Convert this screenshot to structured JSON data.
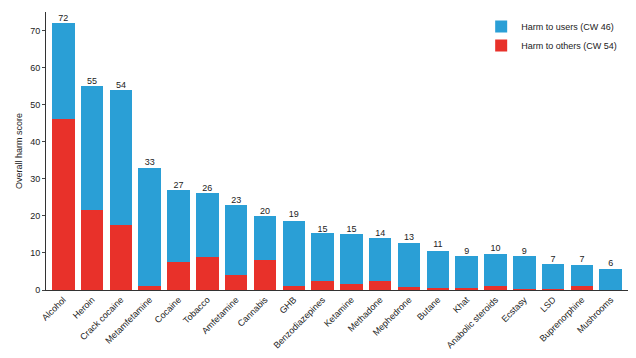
{
  "chart_data": {
    "type": "bar",
    "stacked": true,
    "y_label": "Overall harm score",
    "categories": [
      "Alcohol",
      "Heroin",
      "Crack cocaine",
      "Metamfetamine",
      "Cocaine",
      "Tobacco",
      "Amfetamine",
      "Cannabis",
      "GHB",
      "Benzodiazepines",
      "Ketamine",
      "Methadone",
      "Mephedrone",
      "Butane",
      "Khat",
      "Anabolic steroids",
      "Ecstasy",
      "LSD",
      "Buprenorphine",
      "Mushrooms"
    ],
    "series": [
      {
        "name": "Harm to others (CW 54)",
        "color": "#e8312a",
        "values": [
          46,
          21.5,
          17.5,
          1,
          7.5,
          9,
          4,
          8,
          1,
          2.5,
          1.7,
          2.4,
          0.7,
          0.6,
          0.6,
          1.2,
          0.3,
          0.2,
          1.2,
          0.1
        ]
      },
      {
        "name": "Harm to users (CW 46)",
        "color": "#2a9fd6",
        "values": [
          26,
          33.5,
          36.5,
          32,
          19.5,
          17.3,
          19,
          12,
          17.6,
          12.8,
          13.3,
          11.5,
          12,
          10,
          8.5,
          8.5,
          8.8,
          6.8,
          5.5,
          5.5
        ]
      }
    ],
    "totals": [
      72,
      55,
      54,
      33,
      27,
      26,
      23,
      20,
      19,
      15,
      15,
      14,
      13,
      11,
      9,
      10,
      9,
      7,
      7,
      6
    ],
    "ylim": [
      0,
      75
    ],
    "yticks": [
      0,
      10,
      20,
      30,
      40,
      50,
      60,
      70
    ],
    "grid": false,
    "legend": "upper right"
  }
}
